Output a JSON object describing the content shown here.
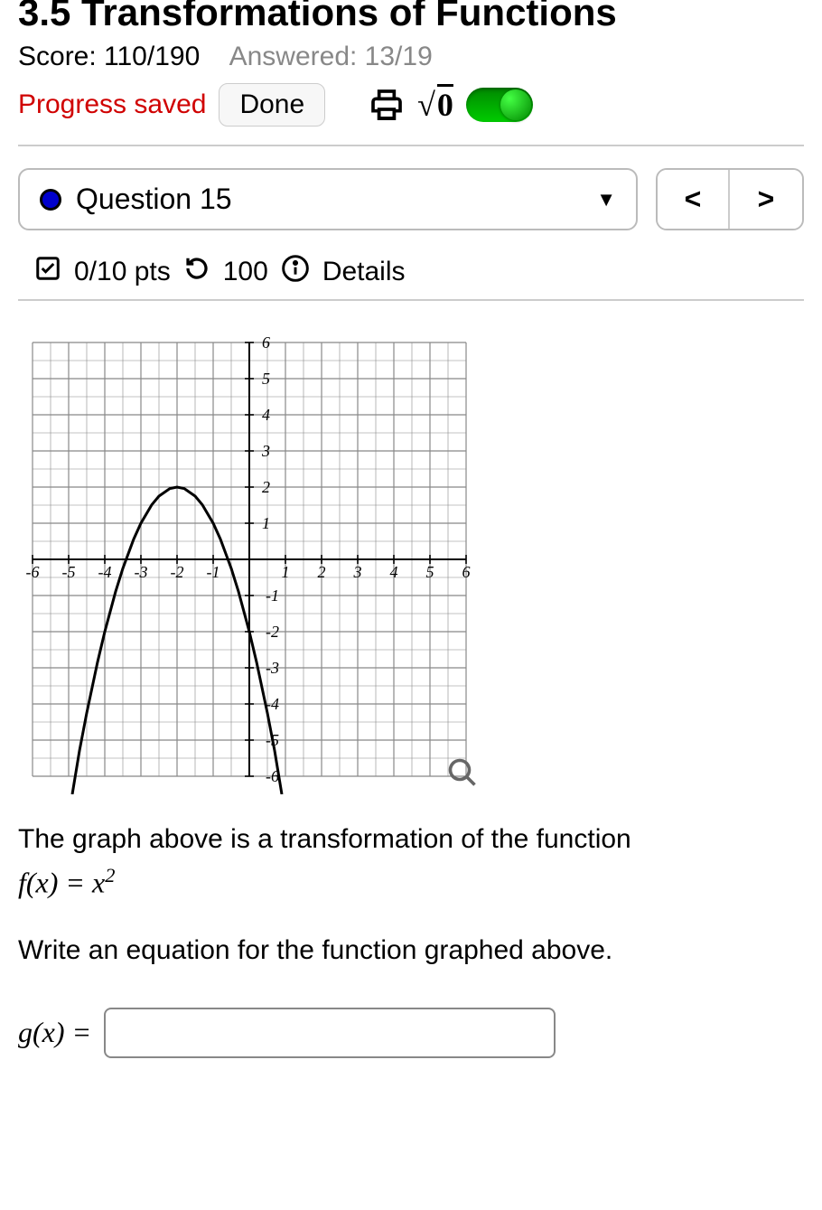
{
  "header": {
    "title": "3.5 Transformations of Functions",
    "score_label": "Score: 110/190",
    "answered_label": "Answered: 13/19",
    "progress_saved": "Progress saved",
    "done_label": "Done"
  },
  "question_nav": {
    "current": "Question 15",
    "prev": "<",
    "next": ">"
  },
  "points_bar": {
    "pts": "0/10 pts",
    "attempts": "100",
    "details": "Details"
  },
  "chart": {
    "type": "line",
    "xlim": [
      -6.5,
      6.5
    ],
    "ylim": [
      -6.5,
      6.5
    ],
    "xtick_step": 1,
    "ytick_step": 1,
    "x_labels": [
      -6,
      -5,
      -4,
      -3,
      -2,
      -1,
      1,
      2,
      3,
      4,
      5,
      6
    ],
    "y_labels": [
      -6,
      -5,
      -4,
      -3,
      -2,
      -1,
      1,
      2,
      3,
      4,
      5,
      6
    ],
    "grid_color": "#888888",
    "axis_color": "#000000",
    "curve_color": "#000000",
    "curve_width": 3,
    "background_color": "#ffffff",
    "label_font": "italic 16px Times New Roman",
    "curve_points": [
      [
        -4.9,
        -6.5
      ],
      [
        -4.7,
        -5.29
      ],
      [
        -4.5,
        -4.25
      ],
      [
        -4.2,
        -2.84
      ],
      [
        -4.0,
        -2.0
      ],
      [
        -3.7,
        -0.89
      ],
      [
        -3.5,
        -0.25
      ],
      [
        -3.2,
        0.56
      ],
      [
        -3.0,
        1.0
      ],
      [
        -2.7,
        1.51
      ],
      [
        -2.5,
        1.75
      ],
      [
        -2.2,
        1.96
      ],
      [
        -2.0,
        2.0
      ],
      [
        -1.8,
        1.96
      ],
      [
        -1.5,
        1.75
      ],
      [
        -1.3,
        1.51
      ],
      [
        -1.0,
        1.0
      ],
      [
        -0.8,
        0.56
      ],
      [
        -0.5,
        -0.25
      ],
      [
        -0.3,
        -0.89
      ],
      [
        0.0,
        -2.0
      ],
      [
        0.2,
        -2.84
      ],
      [
        0.5,
        -4.25
      ],
      [
        0.7,
        -5.29
      ],
      [
        0.9,
        -6.5
      ]
    ]
  },
  "problem": {
    "line1": "The graph above is a transformation of the function",
    "fx_lhs": "f(x) = ",
    "fx_rhs_base": "x",
    "fx_rhs_exp": "2",
    "line2": "Write an equation for the function graphed above.",
    "gx_label": "g(x) ="
  },
  "answer": {
    "value": "",
    "placeholder": ""
  }
}
